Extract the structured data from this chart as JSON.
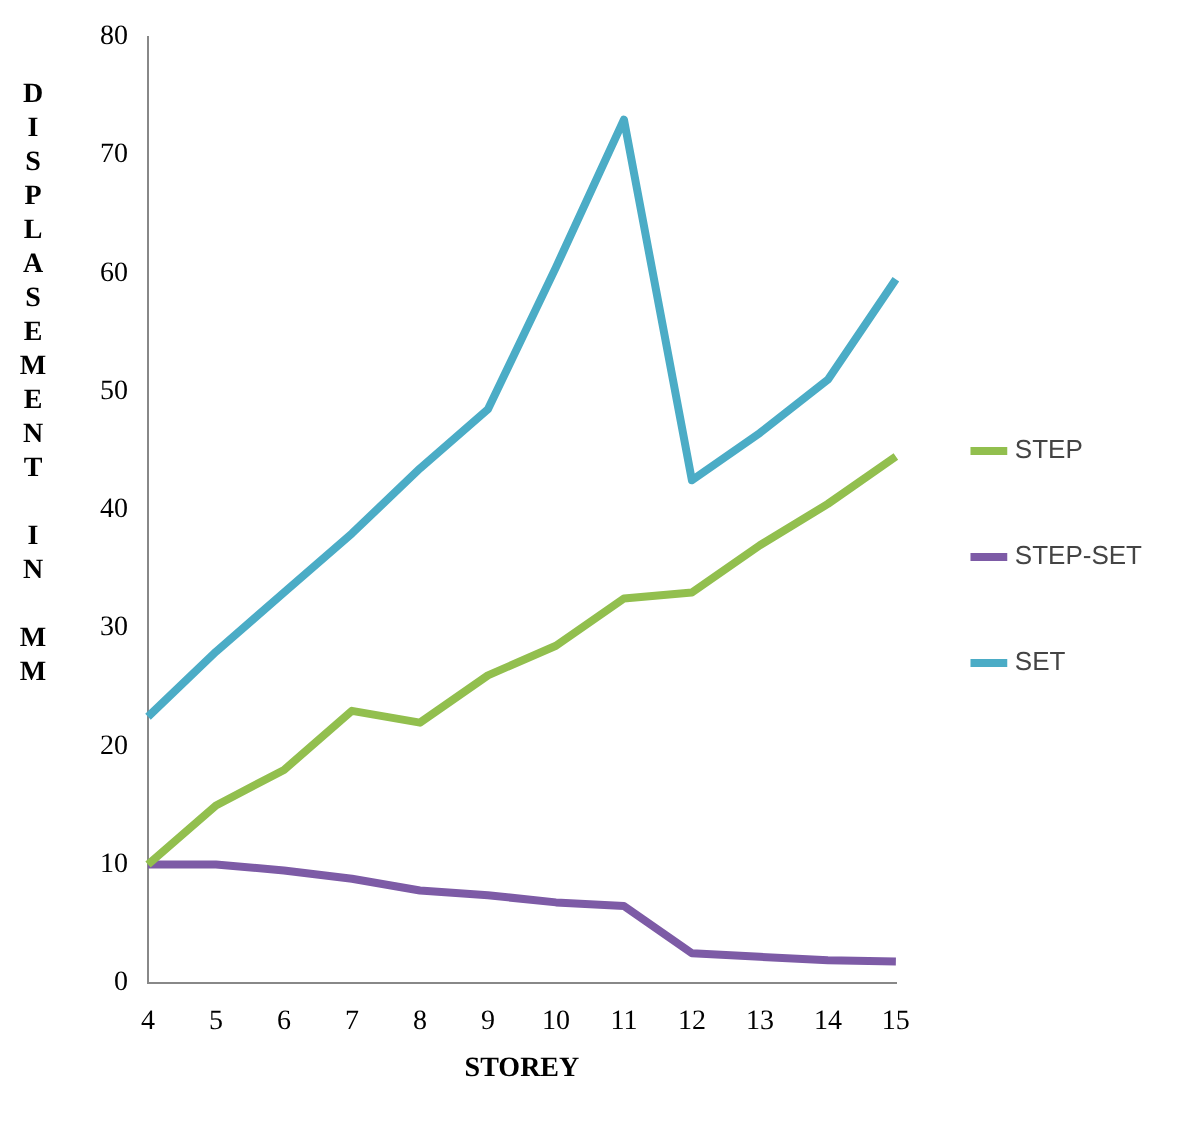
{
  "chart_data": {
    "type": "line",
    "xlabel": "STOREY",
    "ylabel": "DISPLASEMENT IN MM",
    "categories": [
      "4",
      "5",
      "6",
      "7",
      "8",
      "9",
      "10",
      "11",
      "12",
      "13",
      "14",
      "15"
    ],
    "series": [
      {
        "name": "STEP",
        "color": "#92bf4e",
        "values": [
          10,
          15,
          18,
          23,
          22,
          26,
          28.5,
          32.5,
          33,
          37,
          40.5,
          44.5
        ]
      },
      {
        "name": "STEP-SET",
        "color": "#7d5ba6",
        "values": [
          10,
          10,
          9.5,
          8.8,
          7.8,
          7.4,
          6.8,
          6.5,
          2.5,
          2.2,
          1.9,
          1.8
        ]
      },
      {
        "name": "SET",
        "color": "#4bacc6",
        "values": [
          22.5,
          28,
          33,
          38,
          43.5,
          48.5,
          60.5,
          73,
          42.5,
          46.5,
          51,
          59.5
        ]
      }
    ],
    "ylim": [
      0,
      80
    ],
    "yticks": [
      0,
      10,
      20,
      30,
      40,
      50,
      60,
      70,
      80
    ],
    "grid": false,
    "legend": "right",
    "marker": "none",
    "line_style": "solid"
  }
}
